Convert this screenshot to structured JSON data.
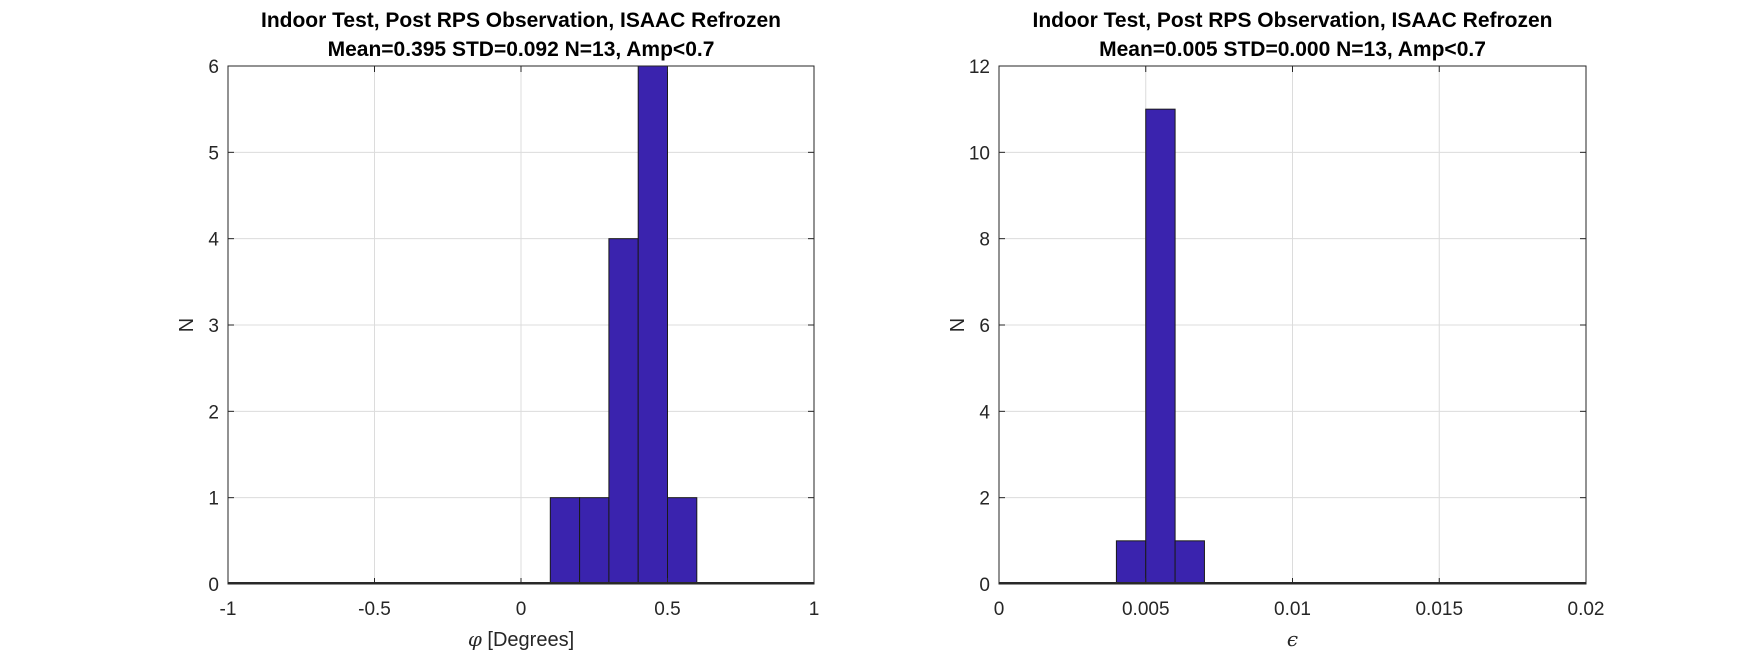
{
  "chart_data": [
    {
      "type": "bar",
      "title": "Indoor Test, Post RPS Observation, ISAAC Refrozen",
      "subtitle": "Mean=0.395 STD=0.092 N=13, Amp<0.7",
      "xlabel_symbol": "φ",
      "xlabel": "[Degrees]",
      "ylabel": "N",
      "xlim": [
        -1,
        1
      ],
      "ylim": [
        0,
        6
      ],
      "xticks": [
        -1,
        -0.5,
        0,
        0.5,
        1
      ],
      "xtick_labels": [
        "-1",
        "-0.5",
        "0",
        "0.5",
        "1"
      ],
      "yticks": [
        0,
        1,
        2,
        3,
        4,
        5,
        6
      ],
      "ytick_labels": [
        "0",
        "1",
        "2",
        "3",
        "4",
        "5",
        "6"
      ],
      "grid": true,
      "bar_color": "#3A23AE",
      "bins": [
        {
          "start": -1.0,
          "end": 0.1,
          "count": 0
        },
        {
          "start": 0.1,
          "end": 0.2,
          "count": 1
        },
        {
          "start": 0.2,
          "end": 0.3,
          "count": 1
        },
        {
          "start": 0.3,
          "end": 0.4,
          "count": 4
        },
        {
          "start": 0.4,
          "end": 0.5,
          "count": 6
        },
        {
          "start": 0.5,
          "end": 0.6,
          "count": 1
        },
        {
          "start": 0.6,
          "end": 1.0,
          "count": 0
        }
      ]
    },
    {
      "type": "bar",
      "title": "Indoor Test, Post RPS Observation, ISAAC Refrozen",
      "subtitle": "Mean=0.005 STD=0.000 N=13, Amp<0.7",
      "xlabel_symbol": "ϵ",
      "xlabel": "",
      "ylabel": "N",
      "xlim": [
        0,
        0.02
      ],
      "ylim": [
        0,
        12
      ],
      "xticks": [
        0,
        0.005,
        0.01,
        0.015,
        0.02
      ],
      "xtick_labels": [
        "0",
        "0.005",
        "0.01",
        "0.015",
        "0.02"
      ],
      "yticks": [
        0,
        2,
        4,
        6,
        8,
        10,
        12
      ],
      "ytick_labels": [
        "0",
        "2",
        "4",
        "6",
        "8",
        "10",
        "12"
      ],
      "grid": true,
      "bar_color": "#3A23AE",
      "bins": [
        {
          "start": 0.0,
          "end": 0.004,
          "count": 0
        },
        {
          "start": 0.004,
          "end": 0.005,
          "count": 1
        },
        {
          "start": 0.005,
          "end": 0.006,
          "count": 11
        },
        {
          "start": 0.006,
          "end": 0.007,
          "count": 1
        },
        {
          "start": 0.007,
          "end": 0.02,
          "count": 0
        }
      ]
    }
  ]
}
